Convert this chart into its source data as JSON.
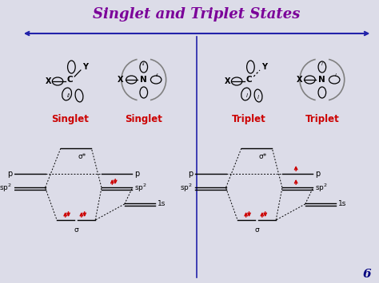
{
  "title": "Singlet and Triplet States",
  "title_color": "#7B0099",
  "title_fontsize": 13,
  "bg_color": "#dcdce8",
  "divider_color": "#2222aa",
  "label_color": "#cc0000",
  "page_number": "6",
  "singlet_label": "Singlet",
  "triplet_label": "Triplet",
  "sigma_star": "σ*",
  "sigma": "σ",
  "electron_color": "#cc0000"
}
